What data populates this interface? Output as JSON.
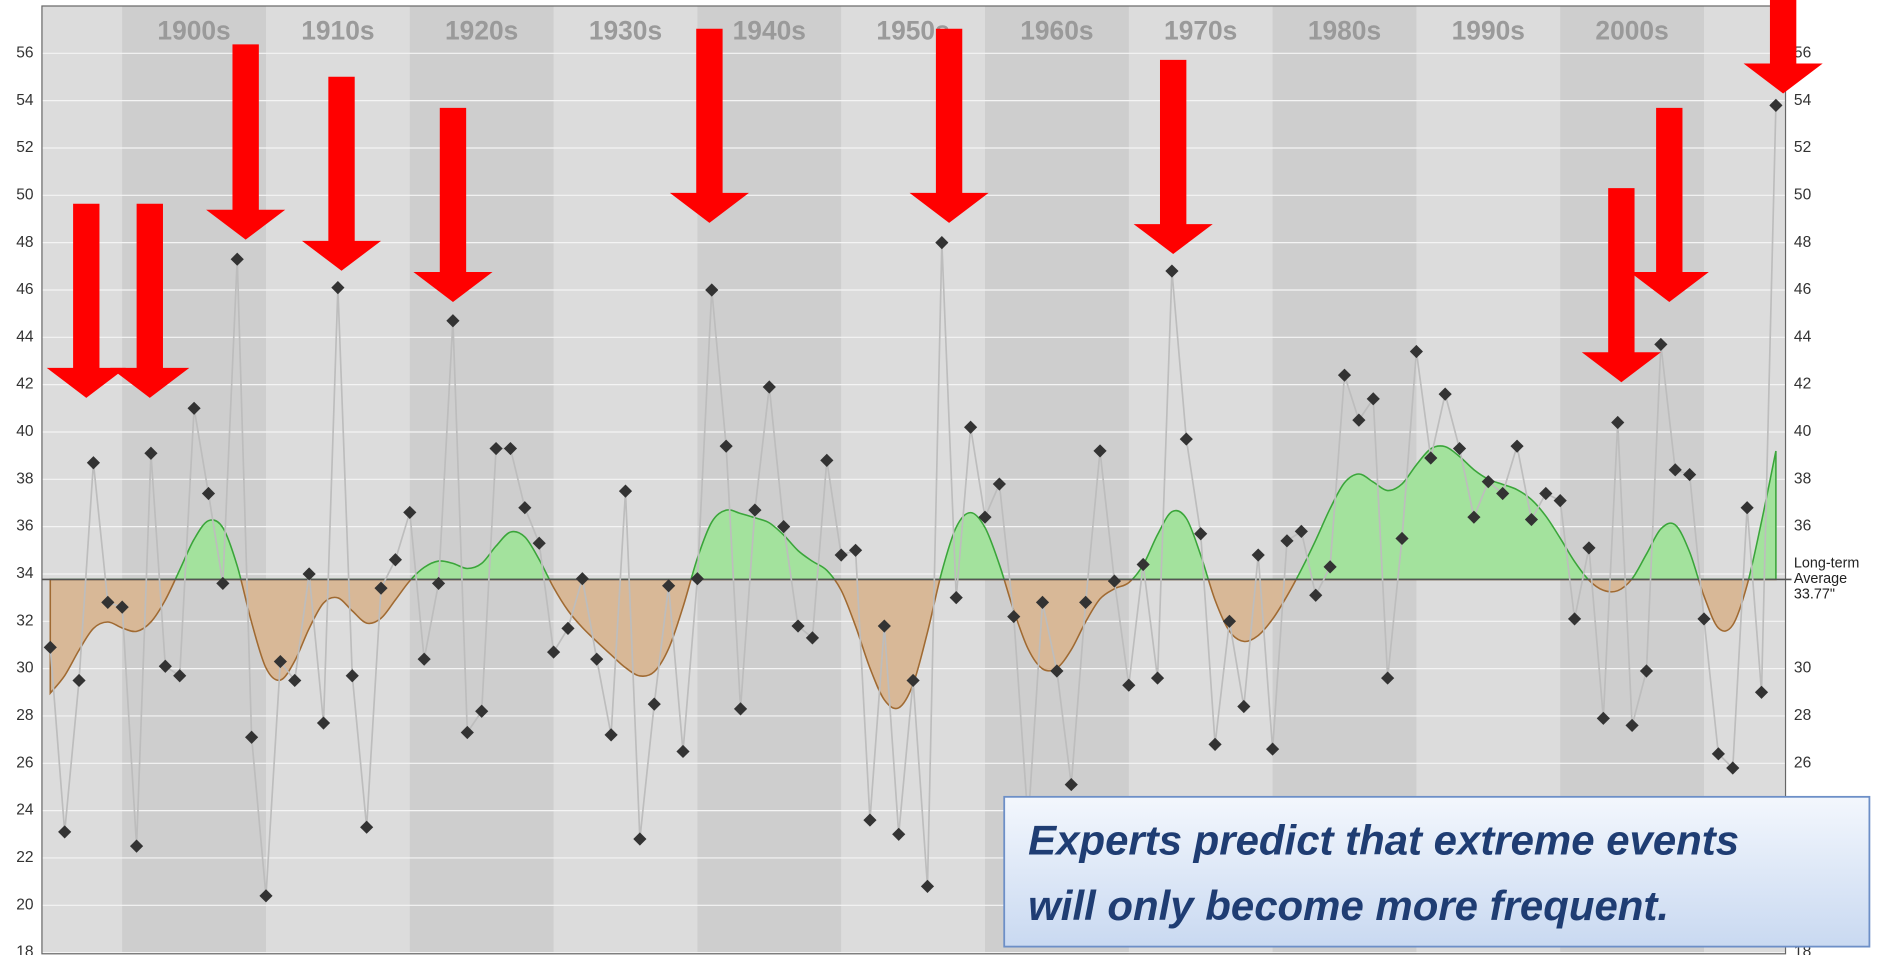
{
  "chart_data": {
    "type": "scatter",
    "x": [
      1895,
      1896,
      1897,
      1898,
      1899,
      1900,
      1901,
      1902,
      1903,
      1904,
      1905,
      1906,
      1907,
      1908,
      1909,
      1910,
      1911,
      1912,
      1913,
      1914,
      1915,
      1916,
      1917,
      1918,
      1919,
      1920,
      1921,
      1922,
      1923,
      1924,
      1925,
      1926,
      1927,
      1928,
      1929,
      1930,
      1931,
      1932,
      1933,
      1934,
      1935,
      1936,
      1937,
      1938,
      1939,
      1940,
      1941,
      1942,
      1943,
      1944,
      1945,
      1946,
      1947,
      1948,
      1949,
      1950,
      1951,
      1952,
      1953,
      1954,
      1955,
      1956,
      1957,
      1958,
      1959,
      1960,
      1961,
      1962,
      1963,
      1964,
      1965,
      1966,
      1967,
      1968,
      1969,
      1970,
      1971,
      1972,
      1973,
      1974,
      1975,
      1976,
      1977,
      1978,
      1979,
      1980,
      1981,
      1982,
      1983,
      1984,
      1985,
      1986,
      1987,
      1988,
      1989,
      1990,
      1991,
      1992,
      1993,
      1994,
      1995,
      1996,
      1997,
      1998,
      1999,
      2000,
      2001,
      2002,
      2003,
      2004,
      2005,
      2006,
      2007,
      2008,
      2009,
      2010,
      2011,
      2012,
      2013,
      2014,
      2015
    ],
    "values": [
      30.9,
      23.1,
      29.5,
      38.7,
      32.8,
      32.6,
      22.5,
      39.1,
      30.1,
      29.7,
      41.0,
      37.4,
      33.6,
      47.3,
      27.1,
      20.4,
      30.3,
      29.5,
      34.0,
      27.7,
      46.1,
      29.7,
      23.3,
      33.4,
      34.6,
      36.6,
      30.4,
      33.6,
      44.7,
      27.3,
      28.2,
      39.3,
      39.3,
      36.8,
      35.3,
      30.7,
      31.7,
      33.8,
      30.4,
      27.2,
      37.5,
      22.8,
      28.5,
      33.5,
      26.5,
      33.8,
      46.0,
      39.4,
      28.3,
      36.7,
      41.9,
      36.0,
      31.8,
      31.3,
      38.8,
      34.8,
      35.0,
      23.6,
      31.8,
      23.0,
      29.5,
      20.8,
      48.0,
      33.0,
      40.2,
      36.4,
      37.8,
      32.2,
      23.5,
      32.8,
      29.9,
      25.1,
      32.8,
      39.2,
      33.7,
      29.3,
      34.4,
      29.6,
      46.8,
      39.7,
      35.7,
      26.8,
      32.0,
      28.4,
      34.8,
      26.6,
      35.4,
      35.8,
      33.1,
      34.3,
      42.4,
      40.5,
      41.4,
      29.6,
      35.5,
      43.4,
      38.9,
      41.6,
      39.3,
      36.4,
      37.9,
      37.4,
      39.4,
      36.3,
      37.4,
      37.1,
      32.1,
      35.1,
      27.9,
      40.4,
      27.6,
      29.9,
      43.7,
      38.4,
      38.2,
      32.1,
      26.4,
      25.8,
      36.8,
      29.0,
      53.8
    ],
    "xlim": [
      1894.42,
      2015.67
    ],
    "xticks": [
      {
        "value": 1900,
        "label": "1900s"
      },
      {
        "value": 1910,
        "label": "1910s"
      },
      {
        "value": 1920,
        "label": "1920s"
      },
      {
        "value": 1930,
        "label": "1930s"
      },
      {
        "value": 1940,
        "label": "1940s"
      },
      {
        "value": 1950,
        "label": "1950s"
      },
      {
        "value": 1960,
        "label": "1960s"
      },
      {
        "value": 1970,
        "label": "1970s"
      },
      {
        "value": 1980,
        "label": "1980s"
      },
      {
        "value": 1990,
        "label": "1990s"
      },
      {
        "value": 2000,
        "label": "2000s"
      }
    ],
    "ylim": [
      17.95,
      58
    ],
    "yticks": [
      56,
      54,
      52,
      50,
      48,
      46,
      44,
      42,
      40,
      38,
      36,
      34,
      32,
      30,
      28,
      26,
      24,
      22,
      20,
      18
    ],
    "y2lim": [
      17.95,
      58
    ],
    "y2ticks": [
      56,
      54,
      52,
      50,
      48,
      46,
      44,
      42,
      40,
      38,
      36,
      30,
      28,
      26,
      18
    ],
    "grid": true,
    "average": 33.77,
    "average_name": [
      "Long-term",
      "Average"
    ],
    "average_label": "33.77\"",
    "annotation": [
      "Experts predict that extreme events",
      "will only become more frequent."
    ]
  }
}
